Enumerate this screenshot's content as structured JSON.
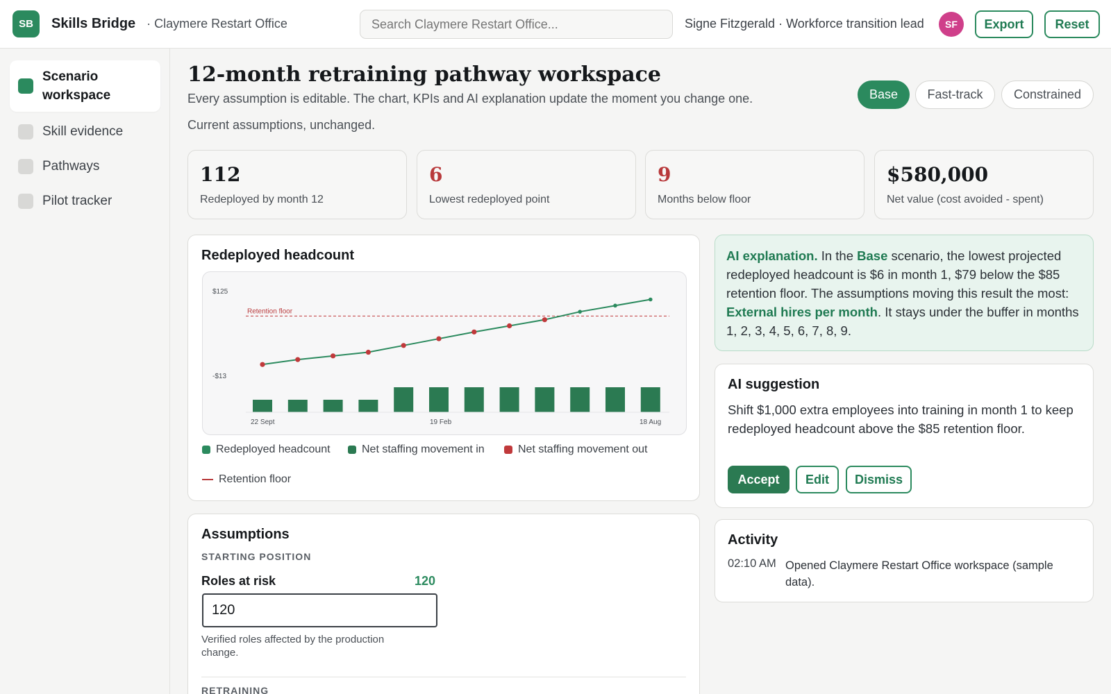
{
  "header": {
    "logo_initials": "SB",
    "brand": "Skills Bridge",
    "org": "· Claymere Restart Office",
    "search_placeholder": "Search Claymere Restart Office...",
    "user": "Signe Fitzgerald · Workforce transition lead",
    "avatar_initials": "SF",
    "export_label": "Export",
    "reset_label": "Reset"
  },
  "sidebar": {
    "items": [
      {
        "label": "Scenario workspace",
        "active": true
      },
      {
        "label": "Skill evidence",
        "active": false
      },
      {
        "label": "Pathways",
        "active": false
      },
      {
        "label": "Pilot tracker",
        "active": false
      }
    ]
  },
  "main": {
    "title": "12-month retraining pathway workspace",
    "subtitle": "Every assumption is editable. The chart, KPIs and AI explanation update the moment you change one.",
    "status": "Current assumptions, unchanged.",
    "scenarios": [
      "Base",
      "Fast-track",
      "Constrained"
    ],
    "active_scenario": "Base"
  },
  "kpis": [
    {
      "value": "112",
      "label": "Redeployed by month 12",
      "alert": false
    },
    {
      "value": "6",
      "label": "Lowest redeployed point",
      "alert": true
    },
    {
      "value": "9",
      "label": "Months below floor",
      "alert": true
    },
    {
      "value": "$580,000",
      "label": "Net value (cost avoided - spent)",
      "alert": false
    }
  ],
  "chart_card": {
    "title": "Redeployed headcount",
    "legend": {
      "headcount": "Redeployed headcount",
      "movement_in": "Net staffing movement in",
      "movement_out": "Net staffing movement out",
      "floor": "Retention floor"
    }
  },
  "chart_data": {
    "type": "line",
    "ytick_labels": [
      "$125",
      "-$13"
    ],
    "ylim": [
      -13,
      125
    ],
    "xtick_labels": [
      "22 Sept",
      "19 Feb",
      "18 Aug"
    ],
    "x": [
      1,
      2,
      3,
      4,
      5,
      6,
      7,
      8,
      9,
      10,
      11,
      12
    ],
    "series": [
      {
        "name": "Redeployed headcount",
        "values": [
          6,
          14,
          20,
          26,
          37,
          48,
          59,
          69,
          79,
          92,
          102,
          112
        ]
      },
      {
        "name": "Net staffing movement in",
        "values": [
          1,
          1,
          1,
          1,
          2,
          2,
          2,
          2,
          2,
          2,
          2,
          2
        ]
      }
    ],
    "retention_floor": {
      "label": "Retention floor",
      "value": 85
    },
    "colors": {
      "line": "#2b8a5e",
      "below_floor_point": "#c0393b",
      "bar": "#2b7a52",
      "floor": "#c0393b"
    },
    "grid": false
  },
  "ai_explanation": {
    "lead": "AI explanation.",
    "t1": " In the ",
    "scenario": "Base",
    "t2": " scenario, the lowest projected redeployed headcount is $6 in month 1, $79 below the $85 retention floor. The assumptions moving this result the most: ",
    "driver": "External hires per month",
    "t3": ". It stays under the buffer in months 1, 2, 3, 4, 5, 6, 7, 8, 9."
  },
  "ai_suggestion": {
    "title": "AI suggestion",
    "text": "Shift $1,000 extra employees into training in month 1 to keep redeployed headcount above the $85 retention floor.",
    "accept": "Accept",
    "edit": "Edit",
    "dismiss": "Dismiss"
  },
  "activity": {
    "title": "Activity",
    "entries": [
      {
        "time": "02:10 AM",
        "text": "Opened Claymere Restart Office workspace (sample data)."
      }
    ]
  },
  "assumptions": {
    "title": "Assumptions",
    "section1": "STARTING POSITION",
    "roles_label": "Roles at risk",
    "roles_value_display": "120",
    "roles_input_value": "120",
    "roles_help": "Verified roles affected by the production change.",
    "section2": "RETRAINING"
  }
}
